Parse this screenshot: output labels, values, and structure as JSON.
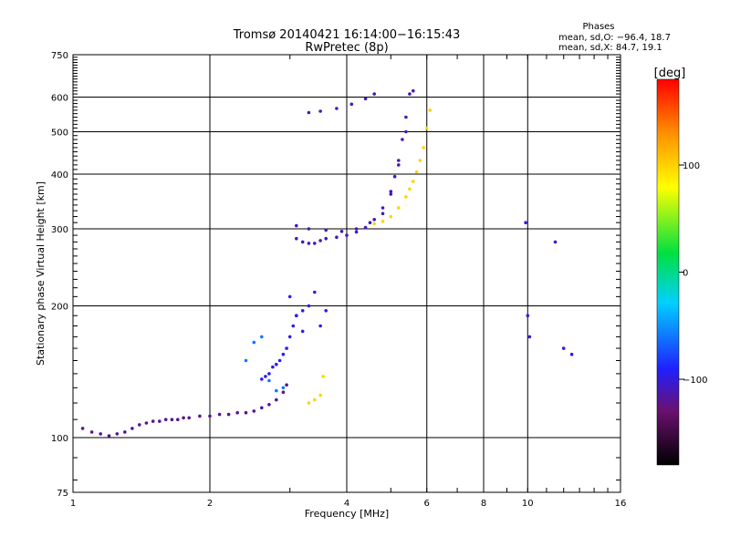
{
  "chart_data": {
    "type": "scatter",
    "title": "Tromsø 20140421 16:14:00−16:15:43",
    "subtitle": "RwPretec (8p)",
    "xlabel": "Frequency [MHz]",
    "ylabel": "Stationary phase Virtual Height [km]",
    "x_scale": "log",
    "y_scale": "log",
    "xlim": [
      1,
      16
    ],
    "ylim": [
      75,
      750
    ],
    "x_ticks": [
      1,
      2,
      4,
      6,
      8,
      10,
      16
    ],
    "x_tick_labels": [
      "1",
      "2",
      "4",
      "6",
      "8",
      "10",
      "16"
    ],
    "y_ticks": [
      75,
      100,
      200,
      300,
      400,
      500,
      600,
      750
    ],
    "y_tick_labels": [
      "75",
      "100",
      "200",
      "300",
      "400",
      "500",
      "600",
      "750"
    ],
    "grid": true,
    "phases_box": {
      "title": "Phases",
      "line1": "mean, sd,O: −96.4, 18.7",
      "line2": "mean, sd,X:  84.7, 19.1"
    },
    "colorbar": {
      "label": "[deg]",
      "range": [
        -180,
        180
      ],
      "ticks": [
        100,
        0,
        -100
      ],
      "tick_labels": [
        "100",
        "0",
        "−100"
      ]
    },
    "series": [
      {
        "phase": -120,
        "x": [
          1.05,
          1.1,
          1.15,
          1.2,
          1.25,
          1.3,
          1.35,
          1.4,
          1.45,
          1.5,
          1.55,
          1.6,
          1.65,
          1.7,
          1.75,
          1.8,
          1.9,
          2.0,
          2.1,
          2.2,
          2.3,
          2.4,
          2.5,
          2.6,
          2.7,
          2.8,
          2.9,
          2.95
        ],
        "y": [
          105,
          103,
          102,
          101,
          102,
          103,
          105,
          107,
          108,
          109,
          109,
          110,
          110,
          110,
          111,
          111,
          112,
          112,
          113,
          113,
          114,
          114,
          115,
          117,
          119,
          122,
          127,
          132
        ]
      },
      {
        "phase": -95,
        "x": [
          2.6,
          2.65,
          2.7,
          2.75,
          2.8,
          2.85,
          2.9,
          2.95,
          3.0,
          3.05,
          3.1,
          3.2
        ],
        "y": [
          136,
          138,
          140,
          145,
          147,
          150,
          155,
          160,
          170,
          180,
          190,
          195
        ]
      },
      {
        "phase": -95,
        "x": [
          3.0,
          3.1,
          3.2,
          3.3,
          3.4,
          3.5,
          3.6
        ],
        "y": [
          210,
          190,
          175,
          200,
          215,
          180,
          195
        ]
      },
      {
        "phase": -110,
        "x": [
          3.1,
          3.2,
          3.3,
          3.4,
          3.5,
          3.6,
          3.8,
          4.0,
          4.2,
          4.4,
          4.6,
          4.8,
          5.0,
          5.1,
          5.2,
          5.3,
          5.4,
          5.5
        ],
        "y": [
          285,
          280,
          278,
          278,
          282,
          285,
          287,
          290,
          295,
          302,
          315,
          335,
          365,
          395,
          430,
          480,
          540,
          610
        ]
      },
      {
        "phase": -110,
        "x": [
          3.1,
          3.3,
          3.6,
          3.9,
          4.2,
          4.5,
          4.8,
          5.0,
          5.2,
          5.4,
          5.6
        ],
        "y": [
          305,
          300,
          298,
          296,
          300,
          310,
          325,
          360,
          420,
          500,
          620
        ]
      },
      {
        "phase": -110,
        "x": [
          3.3,
          3.5,
          3.8,
          4.1,
          4.4,
          4.6
        ],
        "y": [
          553,
          557,
          565,
          578,
          595,
          610
        ]
      },
      {
        "phase": 100,
        "x": [
          4.6,
          4.8,
          5.0,
          5.2,
          5.4,
          5.5,
          5.6,
          5.7,
          5.8,
          5.9,
          6.0,
          6.1
        ],
        "y": [
          308,
          312,
          320,
          335,
          355,
          370,
          385,
          405,
          430,
          460,
          510,
          560
        ]
      },
      {
        "phase": -60,
        "x": [
          2.4,
          2.5,
          2.6,
          2.7,
          2.8,
          2.9
        ],
        "y": [
          150,
          165,
          170,
          135,
          128,
          130
        ]
      },
      {
        "phase": 100,
        "x": [
          3.3,
          3.4,
          3.5,
          3.55
        ],
        "y": [
          120,
          122,
          125,
          138
        ]
      },
      {
        "phase": -100,
        "x": [
          9.9,
          10.0,
          10.1,
          11.5,
          12.0,
          12.5
        ],
        "y": [
          310,
          190,
          170,
          280,
          160,
          155
        ]
      }
    ]
  }
}
